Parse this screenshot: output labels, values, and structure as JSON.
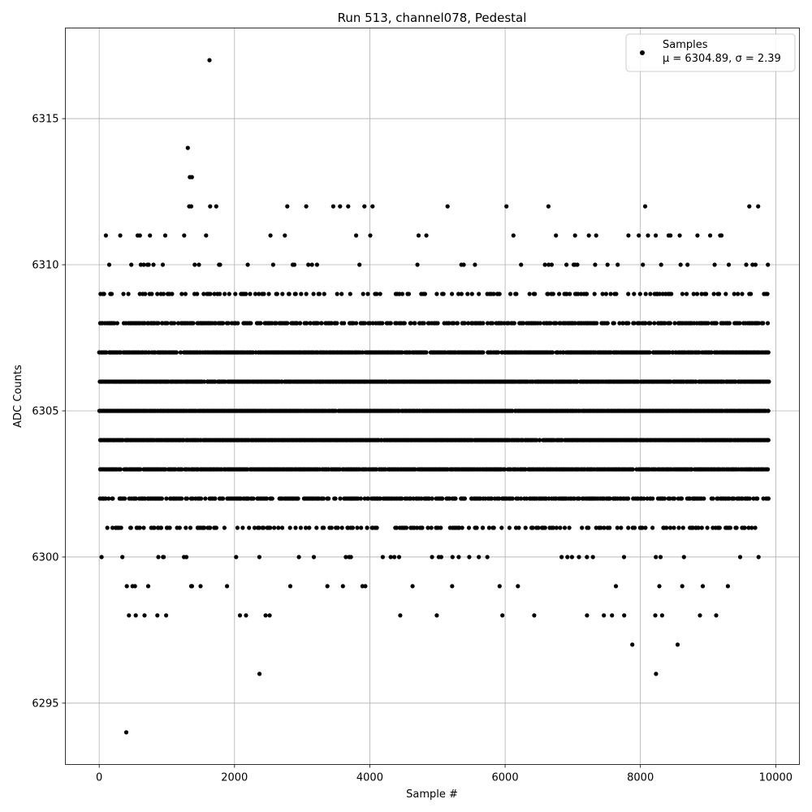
{
  "chart_data": {
    "type": "scatter",
    "title": "Run 513, channel078, Pedestal",
    "xlabel": "Sample #",
    "ylabel": "ADC Counts",
    "xlim": [
      -500,
      10350
    ],
    "ylim": [
      6292.9,
      6318.1
    ],
    "xticks": [
      0,
      2000,
      4000,
      6000,
      8000,
      10000
    ],
    "yticks": [
      6295,
      6300,
      6305,
      6310,
      6315
    ],
    "xtick_labels": [
      "0",
      "2000",
      "4000",
      "6000",
      "8000",
      "10000"
    ],
    "ytick_labels": [
      "6295",
      "6300",
      "6305",
      "6310",
      "6315"
    ],
    "grid": true,
    "marker_color": "#000000",
    "legend": {
      "placement": "top-right",
      "entries": [
        {
          "label": "Samples",
          "stats": "μ = 6304.89, σ = 2.39"
        }
      ]
    },
    "n_samples": 9900,
    "mean": 6304.89,
    "sigma": 2.39,
    "series": [
      {
        "name": "Samples",
        "outliers": [
          [
            400,
            6294
          ],
          [
            1630,
            6317
          ],
          [
            1310,
            6314
          ],
          [
            2370,
            6296
          ],
          [
            8230,
            6296
          ],
          [
            7880,
            6297
          ],
          [
            8550,
            6297
          ],
          [
            1340,
            6313
          ],
          [
            1370,
            6313
          ],
          [
            1330,
            6312
          ],
          [
            1360,
            6312
          ],
          [
            1640,
            6312
          ],
          [
            1730,
            6312
          ],
          [
            2780,
            6312
          ],
          [
            3060,
            6312
          ],
          [
            3460,
            6312
          ],
          [
            3560,
            6312
          ],
          [
            3680,
            6312
          ],
          [
            3920,
            6312
          ],
          [
            4040,
            6312
          ],
          [
            5150,
            6312
          ],
          [
            6020,
            6312
          ],
          [
            6640,
            6312
          ],
          [
            8070,
            6312
          ],
          [
            9610,
            6312
          ],
          [
            9740,
            6312
          ],
          [
            440,
            6298
          ],
          [
            540,
            6298
          ],
          [
            670,
            6298
          ],
          [
            860,
            6298
          ],
          [
            990,
            6298
          ],
          [
            2080,
            6298
          ],
          [
            2170,
            6298
          ],
          [
            2460,
            6298
          ],
          [
            2520,
            6298
          ],
          [
            4450,
            6298
          ],
          [
            4990,
            6298
          ],
          [
            5960,
            6298
          ],
          [
            6430,
            6298
          ],
          [
            7210,
            6298
          ],
          [
            7460,
            6298
          ],
          [
            7580,
            6298
          ],
          [
            7760,
            6298
          ],
          [
            8220,
            6298
          ],
          [
            8320,
            6298
          ],
          [
            8880,
            6298
          ],
          [
            9120,
            6298
          ]
        ],
        "band_densities": {
          "6299": 0.03,
          "6300": 0.06,
          "6301": 0.28,
          "6302": 0.55,
          "6303": 0.85,
          "6304": 0.95,
          "6305": 0.96,
          "6306": 0.94,
          "6307": 0.86,
          "6308": 0.55,
          "6309": 0.24,
          "6310": 0.07,
          "6311": 0.04
        }
      }
    ]
  }
}
